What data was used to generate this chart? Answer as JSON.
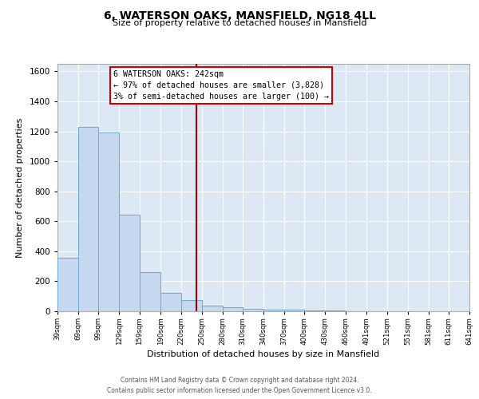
{
  "title": "6, WATERSON OAKS, MANSFIELD, NG18 4LL",
  "subtitle": "Size of property relative to detached houses in Mansfield",
  "xlabel": "Distribution of detached houses by size in Mansfield",
  "ylabel": "Number of detached properties",
  "bar_color": "#c5d8ef",
  "bar_edge_color": "#6aaad4",
  "background_color": "#dce9f5",
  "grid_color": "#ffffff",
  "vline_x": 242,
  "vline_color": "#aa0000",
  "annotation_box_edgecolor": "#cc0000",
  "annotation_title": "6 WATERSON OAKS: 242sqm",
  "annotation_line1": "← 97% of detached houses are smaller (3,828)",
  "annotation_line2": "3% of semi-detached houses are larger (100) →",
  "bins_left": [
    39,
    69,
    99,
    129,
    159,
    190,
    220,
    250,
    280,
    310,
    340,
    370,
    400,
    430,
    460,
    491,
    521,
    551,
    581,
    611
  ],
  "bin_widths": [
    30,
    30,
    30,
    30,
    31,
    30,
    30,
    30,
    30,
    30,
    30,
    30,
    30,
    30,
    31,
    30,
    30,
    30,
    30,
    30
  ],
  "heights": [
    355,
    1232,
    1190,
    645,
    262,
    120,
    75,
    38,
    25,
    15,
    10,
    8,
    5,
    3,
    2,
    1,
    1,
    0,
    0,
    0
  ],
  "tick_labels": [
    "39sqm",
    "69sqm",
    "99sqm",
    "129sqm",
    "159sqm",
    "190sqm",
    "220sqm",
    "250sqm",
    "280sqm",
    "310sqm",
    "340sqm",
    "370sqm",
    "400sqm",
    "430sqm",
    "460sqm",
    "491sqm",
    "521sqm",
    "551sqm",
    "581sqm",
    "611sqm",
    "641sqm"
  ],
  "ylim": [
    0,
    1650
  ],
  "yticks": [
    0,
    200,
    400,
    600,
    800,
    1000,
    1200,
    1400,
    1600
  ],
  "footer_line1": "Contains HM Land Registry data © Crown copyright and database right 2024.",
  "footer_line2": "Contains public sector information licensed under the Open Government Licence v3.0."
}
